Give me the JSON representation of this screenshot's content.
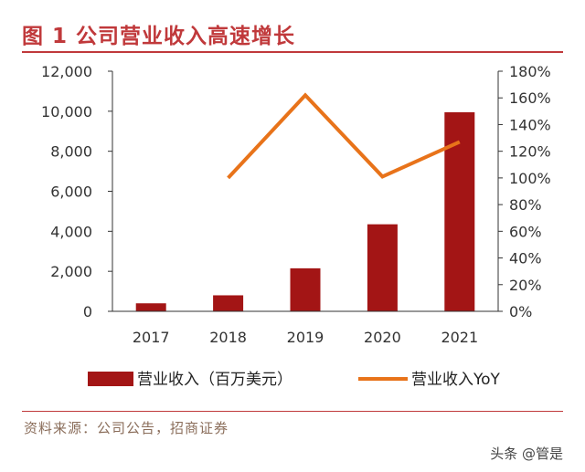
{
  "header": {
    "title": "图 1  公司营业收入高速增长"
  },
  "chart_data": {
    "type": "bar",
    "categories": [
      "2017",
      "2018",
      "2019",
      "2020",
      "2021"
    ],
    "series": [
      {
        "name": "营业收入（百万美元）",
        "kind": "bar",
        "axis": "left",
        "color": "#a31515",
        "values": [
          400,
          800,
          2150,
          4350,
          9950
        ]
      },
      {
        "name": "营业收入YoY",
        "kind": "line",
        "axis": "right",
        "color": "#e8731a",
        "values": [
          null,
          1.0,
          1.62,
          1.01,
          1.27
        ]
      }
    ],
    "left_axis": {
      "ylim": [
        0,
        12000
      ],
      "ticks": [
        "0",
        "2,000",
        "4,000",
        "6,000",
        "8,000",
        "10,000",
        "12,000"
      ]
    },
    "right_axis": {
      "ylim": [
        0,
        1.8
      ],
      "ticks": [
        "0%",
        "20%",
        "40%",
        "60%",
        "80%",
        "100%",
        "120%",
        "140%",
        "160%",
        "180%"
      ]
    },
    "grid": false,
    "legend_position": "bottom"
  },
  "footer": {
    "source": "资料来源：公司公告，招商证券",
    "watermark": "头条 @管是"
  }
}
